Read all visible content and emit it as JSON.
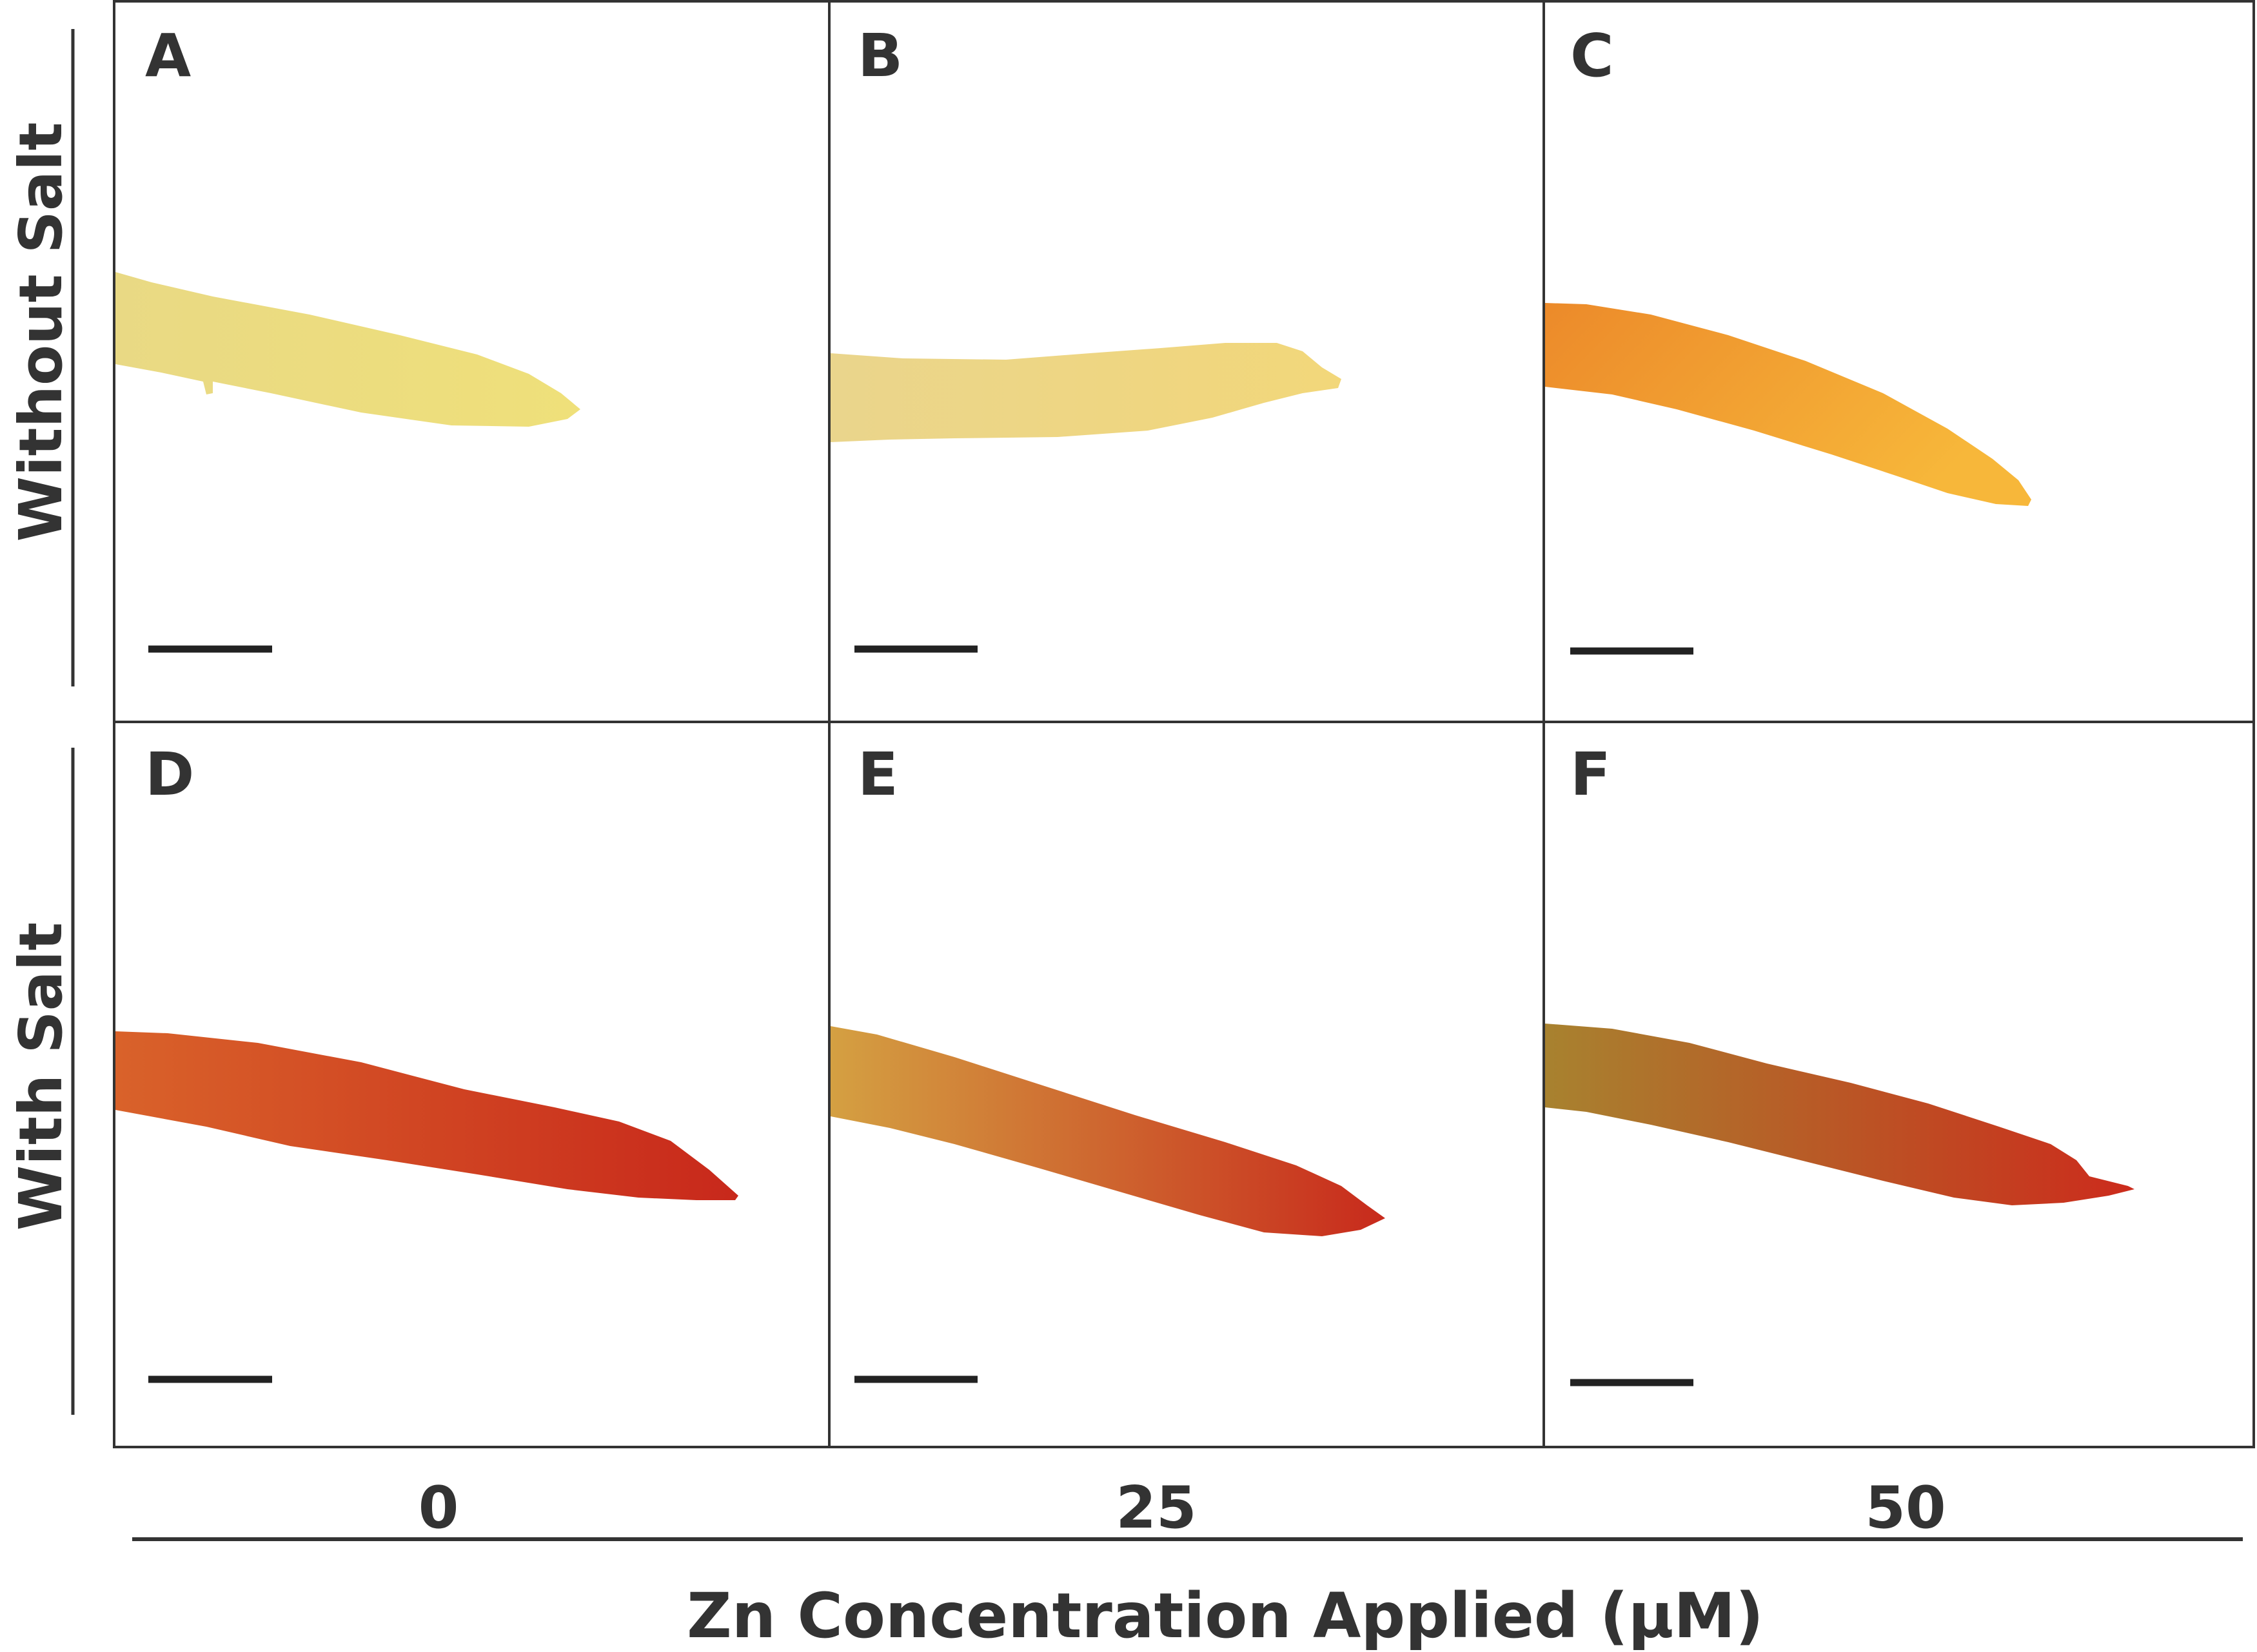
{
  "figure": {
    "x_axis_title": "Zn Concentration Applied (µM)",
    "x_tick_labels": [
      "0",
      "25",
      "50"
    ],
    "row_labels": [
      "Without Salt",
      "With Salt"
    ],
    "panels": [
      {
        "letter": "A",
        "row": "Without Salt",
        "zn": "0",
        "root_color_base": "#e9d984",
        "root_color_tip": "#efe07a"
      },
      {
        "letter": "B",
        "row": "Without Salt",
        "zn": "25",
        "root_color_base": "#ead58c",
        "root_color_tip": "#f2d77a"
      },
      {
        "letter": "C",
        "row": "Without Salt",
        "zn": "50",
        "root_color_base": "#ec8a2a",
        "root_color_tip": "#f7b73a"
      },
      {
        "letter": "D",
        "row": "With Salt",
        "zn": "0",
        "root_color_base": "#d9622a",
        "root_color_tip": "#c8281b"
      },
      {
        "letter": "E",
        "row": "With Salt",
        "zn": "25",
        "root_color_base": "#d4a042",
        "root_color_tip": "#c82a1c"
      },
      {
        "letter": "F",
        "row": "With Salt",
        "zn": "50",
        "root_color_base": "#a8822f",
        "root_color_tip": "#cc2b1c"
      }
    ],
    "colors": {
      "border": "#333333",
      "text": "#333333",
      "background": "#ffffff",
      "scale_bar": "#222222"
    }
  }
}
